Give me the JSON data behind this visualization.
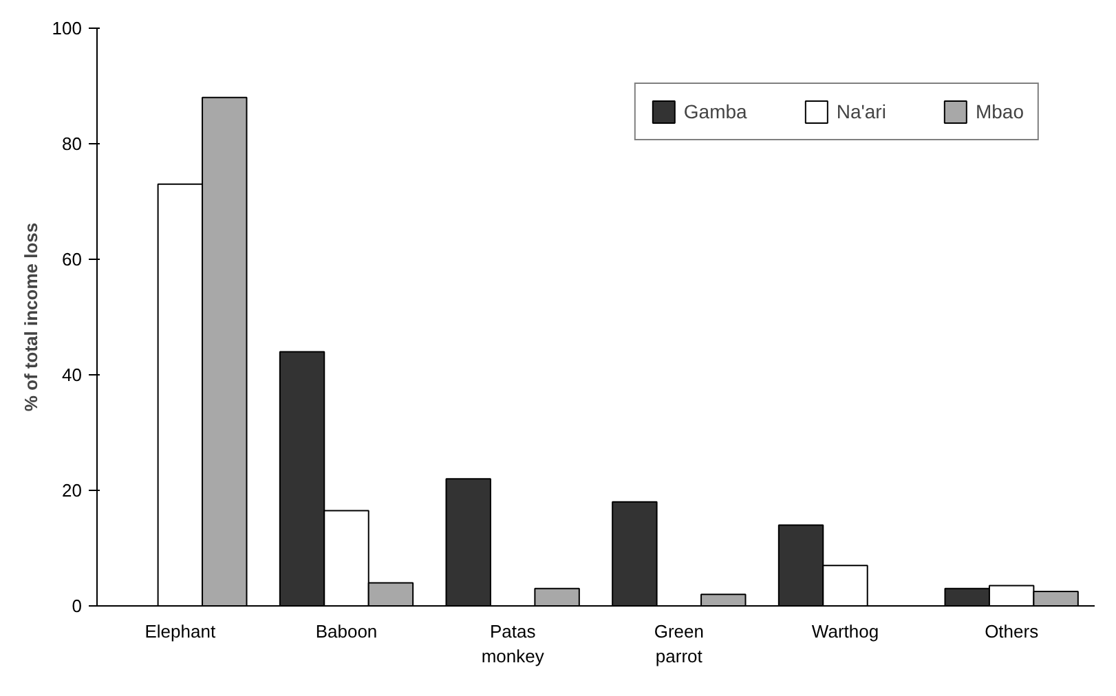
{
  "chart_data": {
    "type": "bar",
    "ylabel": "% of total income loss",
    "categories": [
      "Elephant",
      "Baboon",
      "Patas monkey",
      "Green parrot",
      "Warthog",
      "Others"
    ],
    "series": [
      {
        "name": "Gamba",
        "color": "#333333",
        "values": [
          null,
          44,
          22,
          18,
          14,
          3
        ]
      },
      {
        "name": "Na'ari",
        "color": "#ffffff",
        "values": [
          73,
          16.5,
          null,
          null,
          7,
          3.5
        ]
      },
      {
        "name": "Mbao",
        "color": "#a8a8a8",
        "values": [
          88,
          4,
          3,
          2,
          null,
          2.5
        ]
      }
    ],
    "ylim": [
      0,
      100
    ],
    "yticks": [
      0,
      20,
      40,
      60,
      80,
      100
    ],
    "grid": false,
    "legend": "top right"
  }
}
